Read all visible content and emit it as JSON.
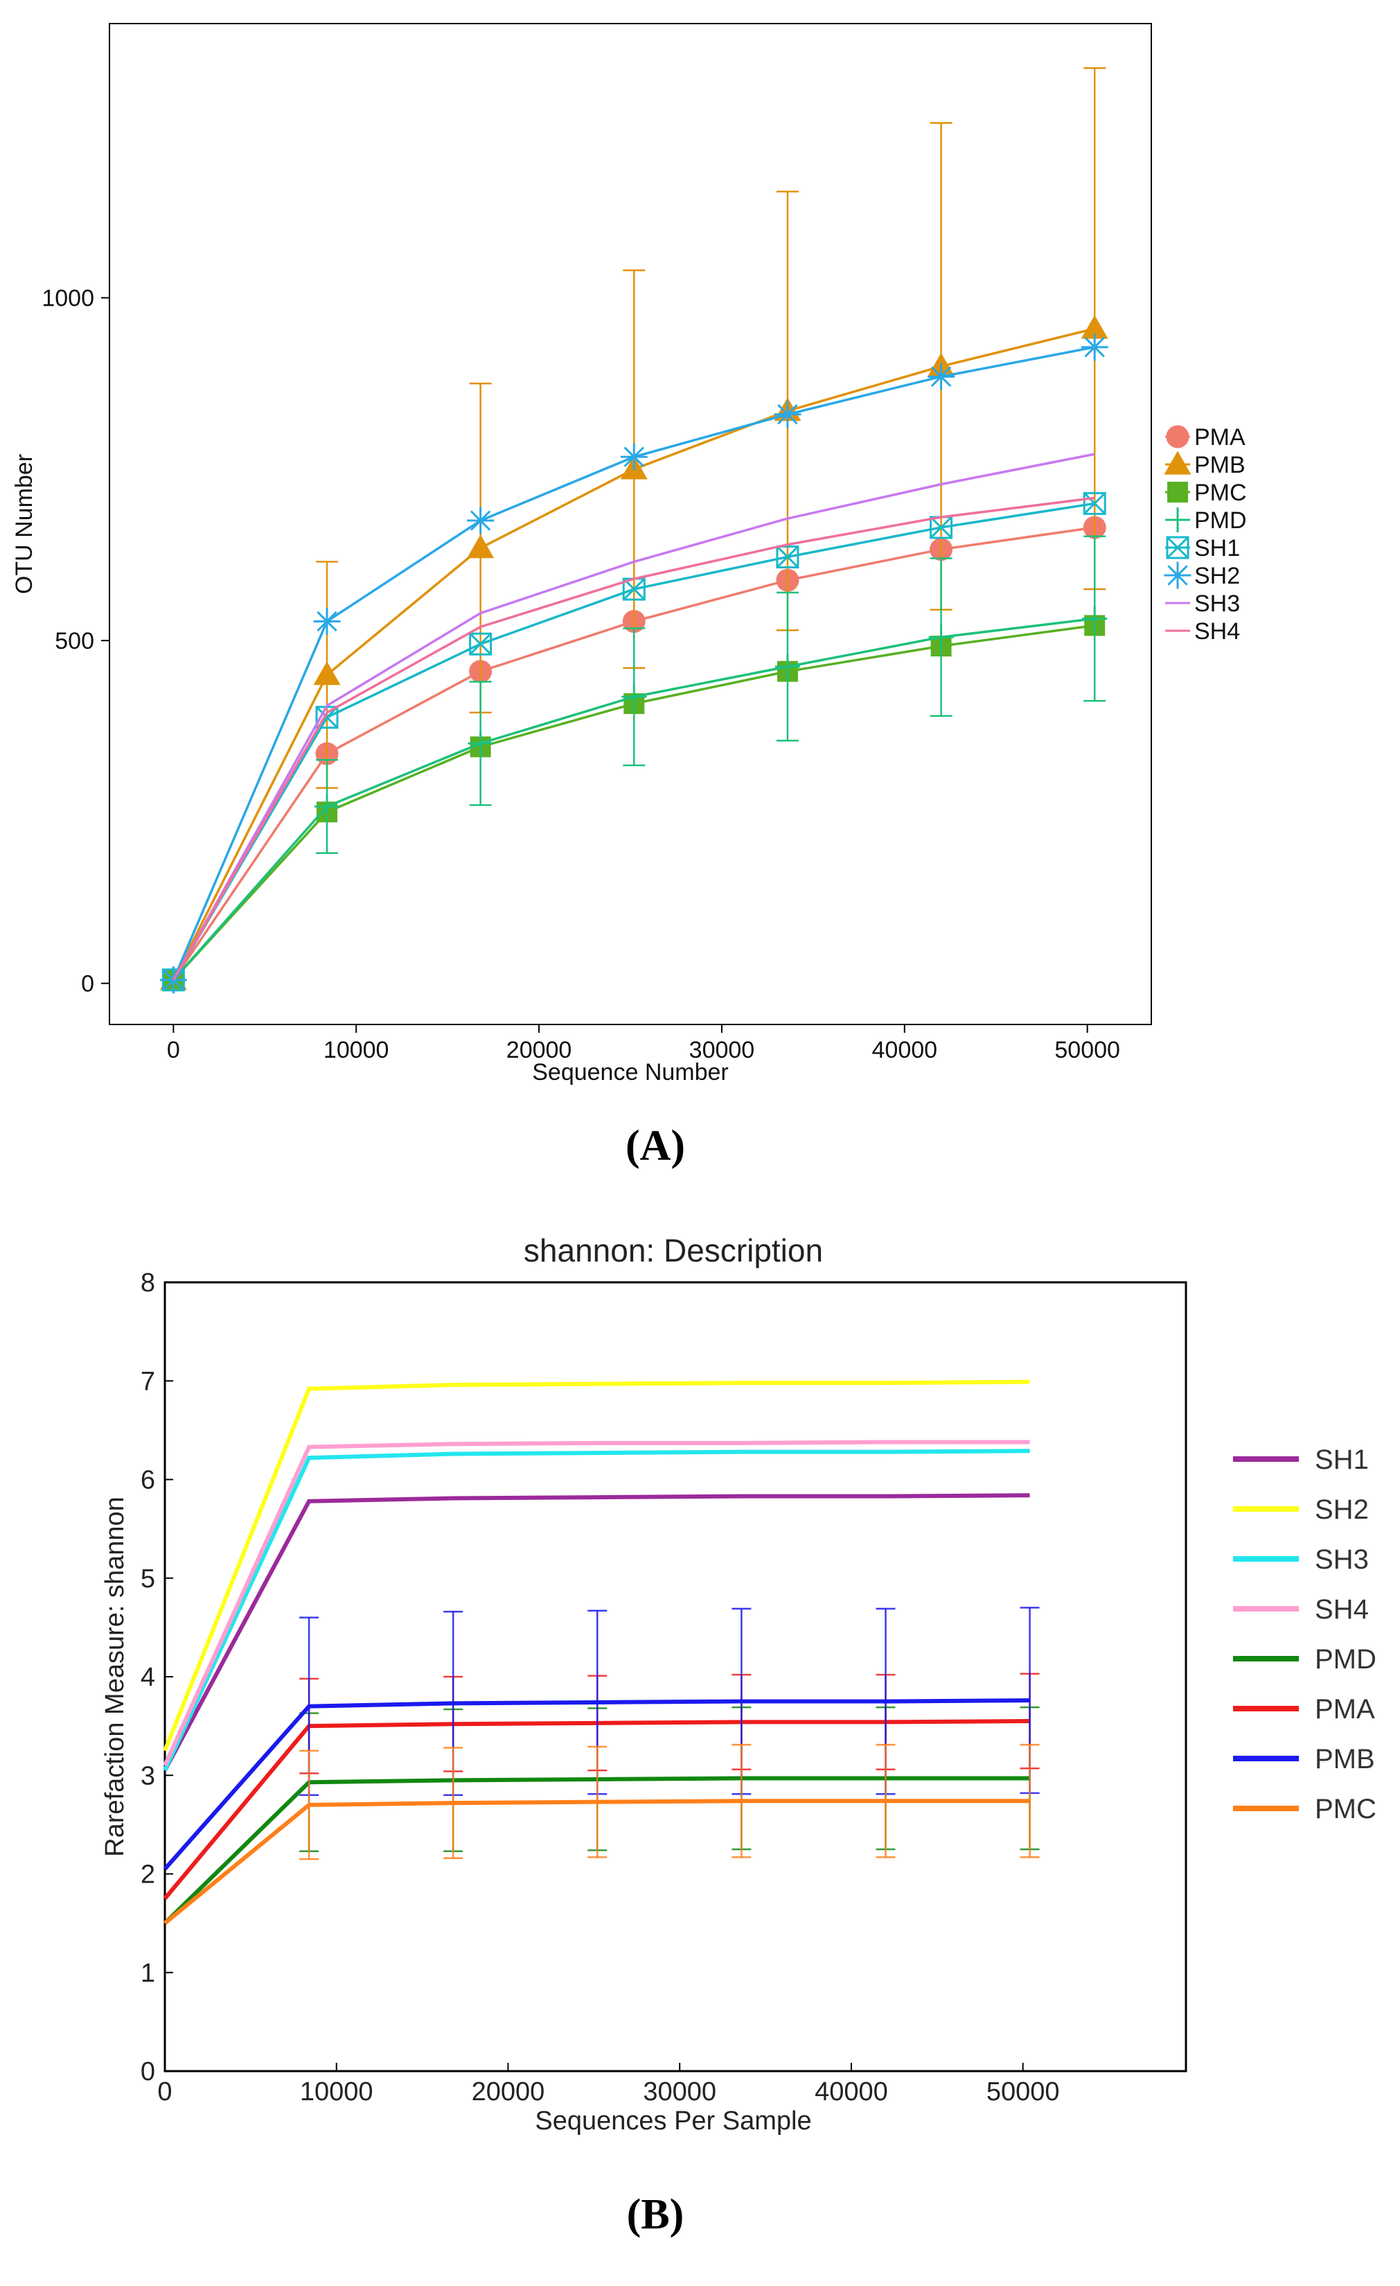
{
  "panels": {
    "a": "(A)",
    "b": "(B)"
  },
  "chart_data": [
    {
      "type": "line",
      "title": "",
      "xlabel": "Sequence Number",
      "ylabel": "OTU Number",
      "xlim": [
        -3500,
        53500
      ],
      "ylim": [
        -60,
        1400
      ],
      "xticks": [
        0,
        10000,
        20000,
        30000,
        40000,
        50000
      ],
      "yticks": [
        0,
        500,
        1000
      ],
      "x": [
        0,
        8400,
        16800,
        25200,
        33600,
        42000,
        50400
      ],
      "legend_position": "right",
      "series": [
        {
          "name": "PMA",
          "color": "#f07b6b",
          "marker": "circle",
          "values": [
            5,
            335,
            455,
            528,
            588,
            633,
            665
          ],
          "error": [
            0,
            0,
            0,
            0,
            0,
            0,
            0
          ]
        },
        {
          "name": "PMB",
          "color": "#e0920a",
          "marker": "triangle",
          "values": [
            5,
            450,
            635,
            750,
            835,
            900,
            955
          ],
          "error": [
            0,
            165,
            240,
            290,
            320,
            355,
            380
          ]
        },
        {
          "name": "PMC",
          "color": "#58b022",
          "marker": "square",
          "values": [
            5,
            250,
            345,
            408,
            455,
            492,
            522
          ],
          "error": [
            0,
            0,
            0,
            0,
            0,
            0,
            0
          ]
        },
        {
          "name": "PMD",
          "color": "#1dc07a",
          "marker": "plus",
          "values": [
            5,
            258,
            350,
            418,
            462,
            505,
            532
          ],
          "error": [
            0,
            68,
            90,
            100,
            108,
            115,
            120
          ]
        },
        {
          "name": "SH1",
          "color": "#19b8c8",
          "marker": "boxx",
          "values": [
            5,
            388,
            495,
            575,
            622,
            665,
            700
          ],
          "error": [
            0,
            0,
            0,
            0,
            0,
            0,
            0
          ]
        },
        {
          "name": "SH2",
          "color": "#2aa8e6",
          "marker": "star",
          "values": [
            5,
            528,
            675,
            768,
            830,
            885,
            928
          ],
          "error": [
            0,
            0,
            0,
            0,
            0,
            0,
            0
          ]
        },
        {
          "name": "SH3",
          "color": "#c878f0",
          "marker": "none",
          "values": [
            5,
            405,
            540,
            615,
            678,
            728,
            772
          ],
          "error": [
            0,
            0,
            0,
            0,
            0,
            0,
            0
          ]
        },
        {
          "name": "SH4",
          "color": "#f0709a",
          "marker": "none",
          "values": [
            5,
            395,
            520,
            590,
            640,
            680,
            708
          ],
          "error": [
            0,
            0,
            0,
            0,
            0,
            0,
            0
          ]
        }
      ]
    },
    {
      "type": "line",
      "title": "shannon: Description",
      "xlabel": "Sequences Per Sample",
      "ylabel": "Rarefaction Measure: shannon",
      "xlim": [
        0,
        59500
      ],
      "ylim": [
        0,
        8
      ],
      "xticks": [
        0,
        10000,
        20000,
        30000,
        40000,
        50000
      ],
      "yticks": [
        0,
        1,
        2,
        3,
        4,
        5,
        6,
        7,
        8
      ],
      "x": [
        0,
        8400,
        16800,
        25200,
        33600,
        42000,
        50400
      ],
      "legend_position": "right",
      "series": [
        {
          "name": "SH1",
          "color": "#9b2a9b",
          "values": [
            3.05,
            5.78,
            5.81,
            5.82,
            5.83,
            5.83,
            5.84
          ],
          "error": [
            0,
            0,
            0,
            0,
            0,
            0,
            0
          ]
        },
        {
          "name": "SH2",
          "color": "#ffff1a",
          "values": [
            3.25,
            6.92,
            6.96,
            6.97,
            6.98,
            6.98,
            6.99
          ],
          "error": [
            0,
            0,
            0,
            0,
            0,
            0,
            0
          ]
        },
        {
          "name": "SH3",
          "color": "#22e6ee",
          "values": [
            3.05,
            6.22,
            6.26,
            6.27,
            6.28,
            6.28,
            6.29
          ],
          "error": [
            0,
            0,
            0,
            0,
            0,
            0,
            0
          ]
        },
        {
          "name": "SH4",
          "color": "#ff9fd0",
          "values": [
            3.1,
            6.33,
            6.36,
            6.37,
            6.37,
            6.38,
            6.38
          ],
          "error": [
            0,
            0,
            0,
            0,
            0,
            0,
            0
          ]
        },
        {
          "name": "PMD",
          "color": "#118811",
          "values": [
            1.5,
            2.93,
            2.95,
            2.96,
            2.97,
            2.97,
            2.97
          ],
          "error": [
            0,
            0.7,
            0.72,
            0.72,
            0.72,
            0.72,
            0.72
          ]
        },
        {
          "name": "PMA",
          "color": "#ee1c1c",
          "values": [
            1.75,
            3.5,
            3.52,
            3.53,
            3.54,
            3.54,
            3.55
          ],
          "error": [
            0,
            0.48,
            0.48,
            0.48,
            0.48,
            0.48,
            0.48
          ]
        },
        {
          "name": "PMB",
          "color": "#1a1aee",
          "values": [
            2.05,
            3.7,
            3.73,
            3.74,
            3.75,
            3.75,
            3.76
          ],
          "error": [
            0,
            0.9,
            0.93,
            0.93,
            0.94,
            0.94,
            0.94
          ]
        },
        {
          "name": "PMC",
          "color": "#ff7f1a",
          "values": [
            1.5,
            2.7,
            2.72,
            2.73,
            2.74,
            2.74,
            2.74
          ],
          "error": [
            0,
            0.55,
            0.56,
            0.56,
            0.57,
            0.57,
            0.57
          ]
        }
      ]
    }
  ]
}
